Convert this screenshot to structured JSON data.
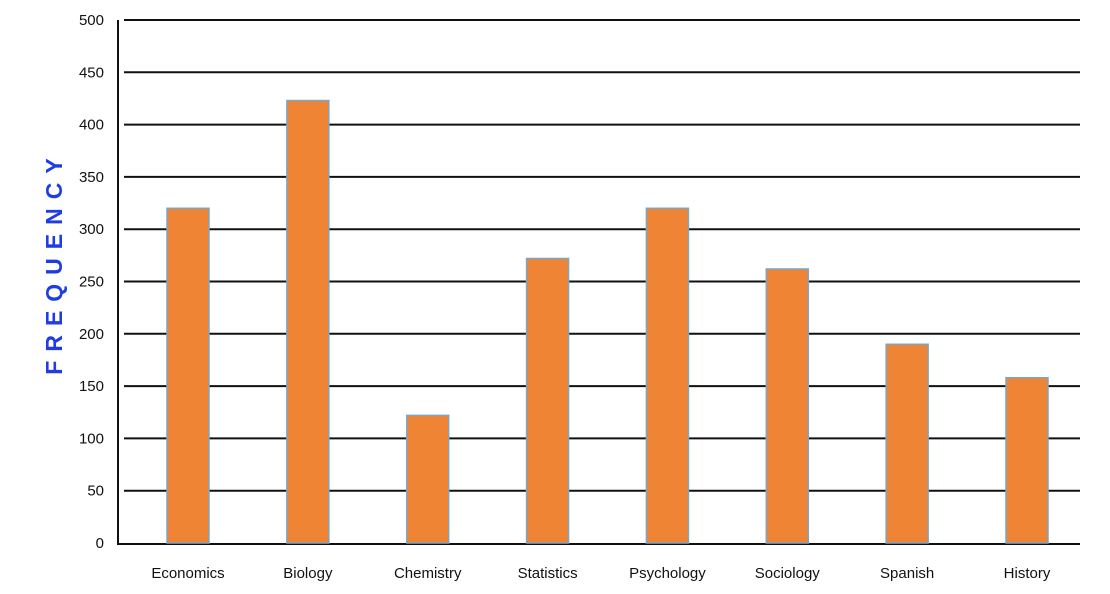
{
  "chart_data": {
    "type": "bar",
    "title": "",
    "xlabel": "",
    "ylabel": "FREQUENCY",
    "categories": [
      "Economics",
      "Biology",
      "Chemistry",
      "Statistics",
      "Psychology",
      "Sociology",
      "Spanish",
      "History"
    ],
    "values": [
      320,
      423,
      122,
      272,
      320,
      262,
      190,
      158
    ],
    "ylim": [
      0,
      500
    ],
    "yticks": [
      "0",
      "50",
      "100",
      "150",
      "200",
      "250",
      "300",
      "350",
      "400",
      "450",
      "500"
    ],
    "grid": true,
    "legend": "none",
    "colors": {
      "bar_fill": "#ee8434",
      "bar_edge": "#7aa6c8",
      "ylabel": "#1f3de0",
      "grid": "#111111"
    }
  }
}
